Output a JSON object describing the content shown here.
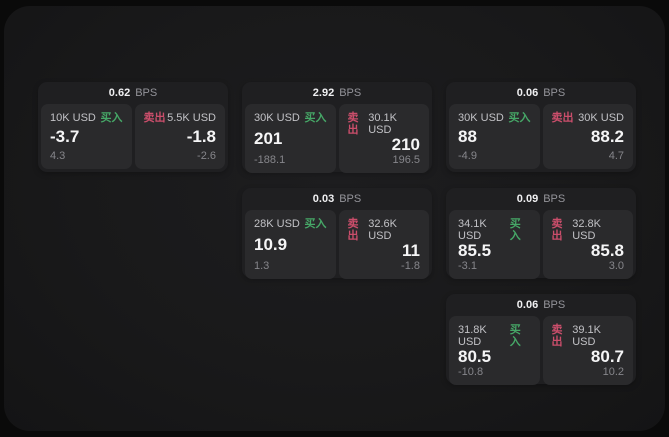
{
  "labels": {
    "bps_unit": "BPS",
    "buy": "买入",
    "sell": "卖出"
  },
  "colors": {
    "buy": "#46a767",
    "sell": "#cb4e6b",
    "card_bg": "#1f1f21",
    "panel_bg": "#2a2a2c",
    "page_bg": "#1a1a1b"
  },
  "cards": [
    {
      "bps": "0.62",
      "buy": {
        "amount": "10K USD",
        "price": "-3.7",
        "delta": "4.3"
      },
      "sell": {
        "amount": "5.5K USD",
        "price": "-1.8",
        "delta": "-2.6"
      }
    },
    {
      "bps": "2.92",
      "buy": {
        "amount": "30K USD",
        "price": "201",
        "delta": "-188.1"
      },
      "sell": {
        "amount": "30.1K USD",
        "price": "210",
        "delta": "196.5"
      }
    },
    {
      "bps": "0.06",
      "buy": {
        "amount": "30K USD",
        "price": "88",
        "delta": "-4.9"
      },
      "sell": {
        "amount": "30K USD",
        "price": "88.2",
        "delta": "4.7"
      }
    },
    {
      "bps": "0.03",
      "buy": {
        "amount": "28K USD",
        "price": "10.9",
        "delta": "1.3"
      },
      "sell": {
        "amount": "32.6K USD",
        "price": "11",
        "delta": "-1.8"
      }
    },
    {
      "bps": "0.09",
      "buy": {
        "amount": "34.1K USD",
        "price": "85.5",
        "delta": "-3.1"
      },
      "sell": {
        "amount": "32.8K USD",
        "price": "85.8",
        "delta": "3.0"
      }
    },
    {
      "bps": "0.06",
      "buy": {
        "amount": "31.8K USD",
        "price": "80.5",
        "delta": "-10.8"
      },
      "sell": {
        "amount": "39.1K USD",
        "price": "80.7",
        "delta": "10.2"
      }
    }
  ]
}
